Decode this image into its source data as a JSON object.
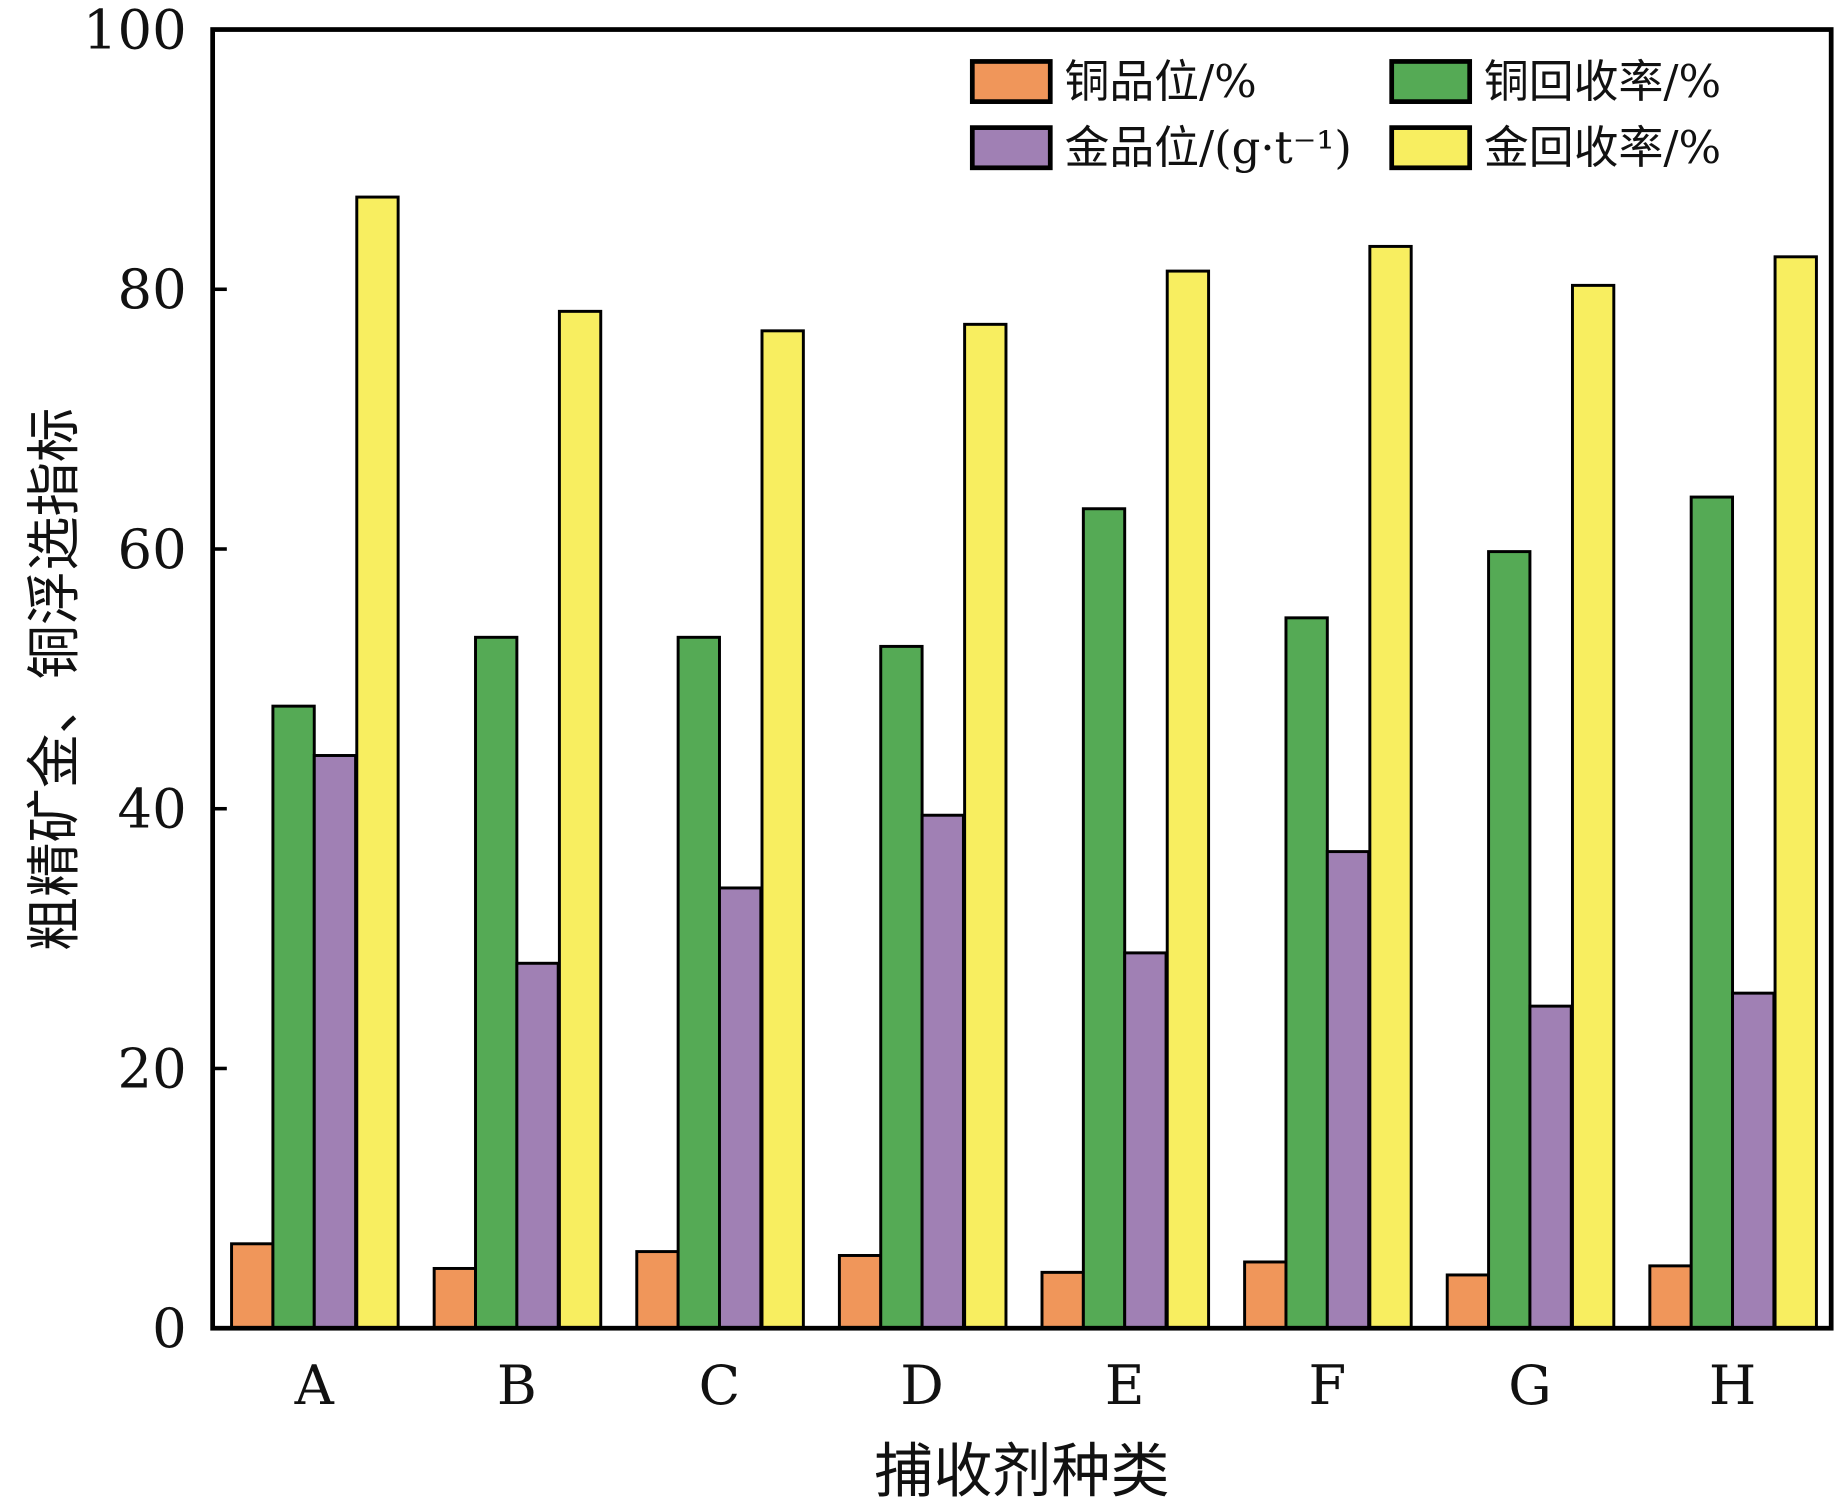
{
  "chart_data": {
    "type": "bar",
    "title": "",
    "xlabel": "捕收剂种类",
    "ylabel": "粗精矿金、铜浮选指标",
    "ylim": [
      0,
      100
    ],
    "yticks": [
      0,
      20,
      40,
      60,
      80,
      100
    ],
    "categories": [
      "A",
      "B",
      "C",
      "D",
      "E",
      "F",
      "G",
      "H"
    ],
    "legend_position": "top-right",
    "series": [
      {
        "name": "铜品位/%",
        "color": "#f0965a",
        "values": [
          6.5,
          4.6,
          5.9,
          5.6,
          4.3,
          5.1,
          4.1,
          4.8
        ]
      },
      {
        "name": "铜回收率/%",
        "color": "#55aa55",
        "values": [
          47.9,
          53.2,
          53.2,
          52.5,
          63.1,
          54.7,
          59.8,
          64.0
        ]
      },
      {
        "name": "金品位/(g·t⁻¹)",
        "color": "#a080b4",
        "values": [
          44.1,
          28.1,
          33.9,
          39.5,
          28.9,
          36.7,
          24.8,
          25.8
        ]
      },
      {
        "name": "金回收率/%",
        "color": "#f8ee60",
        "values": [
          87.1,
          78.3,
          76.8,
          77.3,
          81.4,
          83.3,
          80.3,
          82.5
        ]
      }
    ]
  }
}
